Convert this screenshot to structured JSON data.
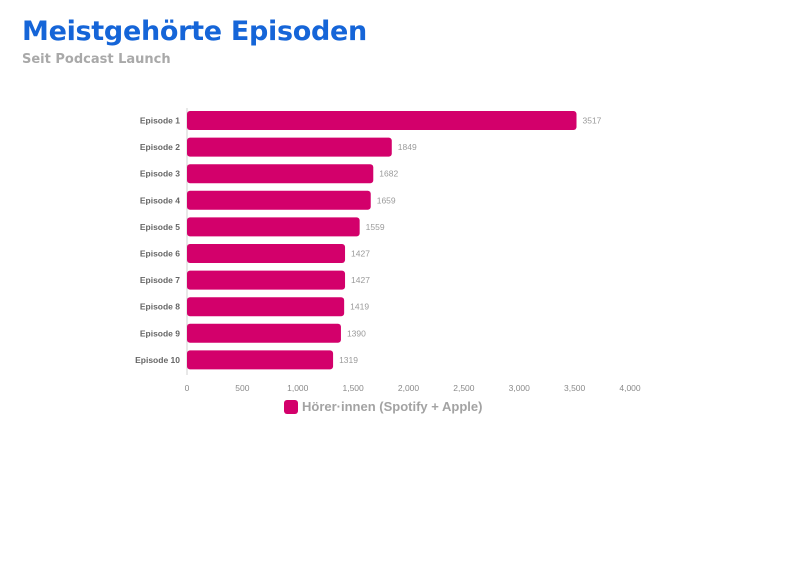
{
  "header": {
    "title": "Meistgehörte Episoden",
    "subtitle": "Seit Podcast Launch"
  },
  "colors": {
    "title": "#1565d8",
    "bar": "#d3006b"
  },
  "chart_data": {
    "type": "bar",
    "orientation": "horizontal",
    "categories": [
      "Episode 1",
      "Episode 2",
      "Episode 3",
      "Episode 4",
      "Episode 5",
      "Episode 6",
      "Episode 7",
      "Episode 8",
      "Episode 9",
      "Episode 10"
    ],
    "series": [
      {
        "name": "Hörer·innen (Spotify + Apple)",
        "values": [
          3517,
          1849,
          1682,
          1659,
          1559,
          1427,
          1427,
          1419,
          1390,
          1319
        ]
      }
    ],
    "x_ticks": [
      "0",
      "500",
      "1,000",
      "1,500",
      "2,000",
      "2,500",
      "3,000",
      "3,500",
      "4,000"
    ],
    "xlim": [
      0,
      4000
    ],
    "grid": false,
    "legend_position": "bottom",
    "data_labels": true
  }
}
